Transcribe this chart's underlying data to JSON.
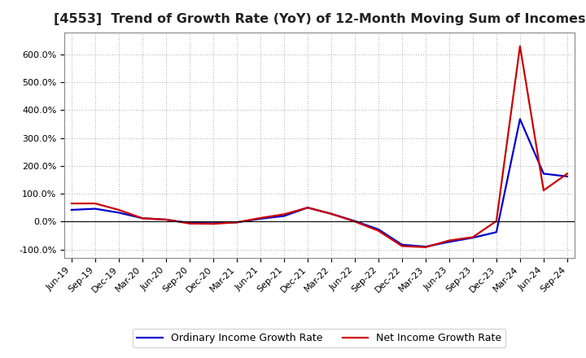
{
  "title": "[4553]  Trend of Growth Rate (YoY) of 12-Month Moving Sum of Incomes",
  "background_color": "#ffffff",
  "plot_bg_color": "#ffffff",
  "grid_color": "#aaaaaa",
  "ylim": [
    -130,
    680
  ],
  "yticks": [
    -100,
    0,
    100,
    200,
    300,
    400,
    500,
    600
  ],
  "ytick_labels": [
    "-100.0%",
    "0.0%",
    "100.0%",
    "200.0%",
    "300.0%",
    "400.0%",
    "500.0%",
    "600.0%"
  ],
  "x_labels": [
    "Jun-19",
    "Sep-19",
    "Dec-19",
    "Mar-20",
    "Jun-20",
    "Sep-20",
    "Dec-20",
    "Mar-21",
    "Jun-21",
    "Sep-21",
    "Dec-21",
    "Mar-22",
    "Jun-22",
    "Sep-22",
    "Dec-22",
    "Mar-23",
    "Jun-23",
    "Sep-23",
    "Dec-23",
    "Mar-24",
    "Jun-24",
    "Sep-24"
  ],
  "ordinary_income": [
    42,
    46,
    32,
    12,
    7,
    -5,
    -6,
    -3,
    10,
    20,
    50,
    28,
    2,
    -28,
    -83,
    -90,
    -73,
    -58,
    -38,
    368,
    172,
    162
  ],
  "net_income": [
    65,
    65,
    42,
    12,
    7,
    -7,
    -8,
    -3,
    13,
    26,
    50,
    28,
    0,
    -33,
    -88,
    -92,
    -68,
    -56,
    2,
    630,
    112,
    172
  ],
  "ordinary_color": "#0000cc",
  "net_color": "#cc0000",
  "line_width": 1.6,
  "legend_ordinary": "Ordinary Income Growth Rate",
  "legend_net": "Net Income Growth Rate",
  "title_fontsize": 11.5,
  "tick_fontsize": 8,
  "legend_fontsize": 9
}
